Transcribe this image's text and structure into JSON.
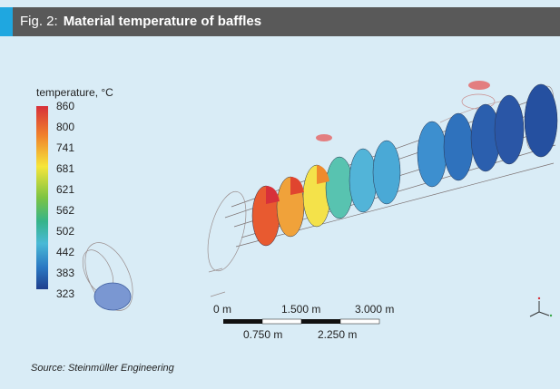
{
  "figure": {
    "fig_number": "Fig. 2:",
    "title": "Material temperature of baffles",
    "source": "Source: Steinmüller Engineering"
  },
  "legend": {
    "title": "temperature, °C",
    "ticks": [
      "860",
      "800",
      "741",
      "681",
      "621",
      "562",
      "502",
      "442",
      "383",
      "323"
    ]
  },
  "scale_bar": {
    "top_labels": [
      "0 m",
      "1.500 m",
      "3.000 m"
    ],
    "bottom_labels": [
      "0.750 m",
      "2.250 m"
    ]
  },
  "colors": {
    "background": "#d9ecf6",
    "header_bg": "#595959",
    "header_accent": "#1fa7e0",
    "hot": "#d7303a",
    "cold": "#1f3f8d"
  },
  "icons": {
    "axes": "axis-triad-icon"
  }
}
